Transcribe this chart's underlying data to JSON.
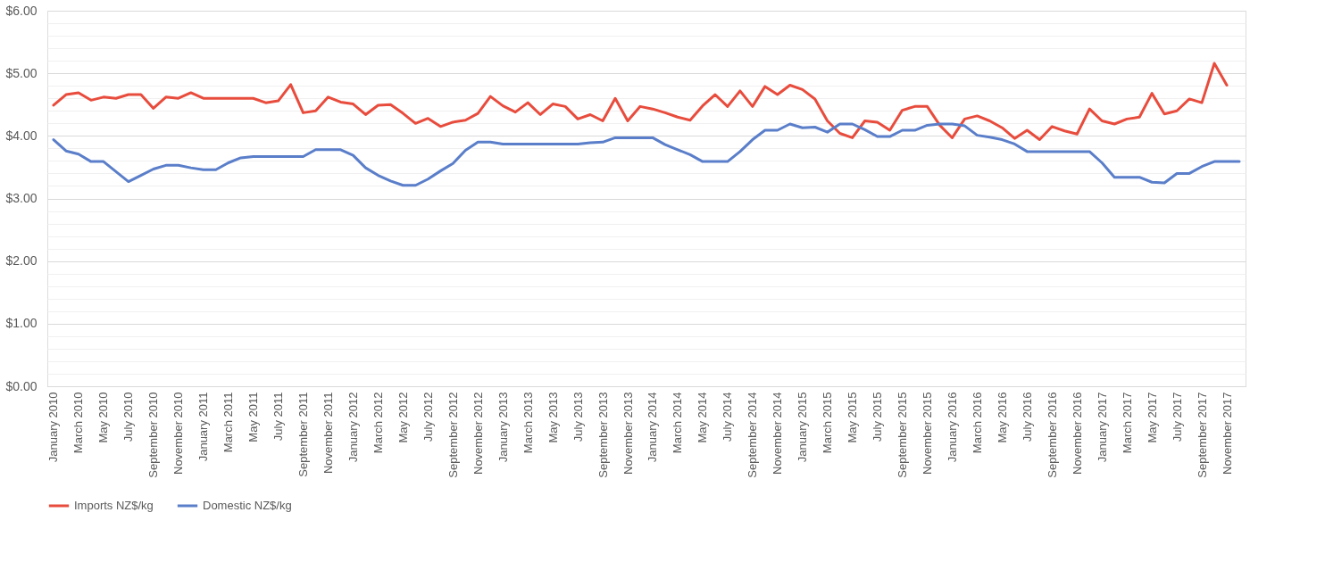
{
  "chart_data": {
    "type": "line",
    "categories": [
      "January 2010",
      null,
      "March 2010",
      null,
      "May 2010",
      null,
      "July 2010",
      null,
      "September 2010",
      null,
      "November 2010",
      null,
      "January 2011",
      null,
      "March 2011",
      null,
      "May 2011",
      null,
      "July 2011",
      null,
      "September 2011",
      null,
      "November 2011",
      null,
      "January 2012",
      null,
      "March 2012",
      null,
      "May 2012",
      null,
      "July 2012",
      null,
      "September 2012",
      null,
      "November 2012",
      null,
      "January 2013",
      null,
      "March 2013",
      null,
      "May 2013",
      null,
      "July 2013",
      null,
      "September 2013",
      null,
      "November 2013",
      null,
      "January 2014",
      null,
      "March 2014",
      null,
      "May 2014",
      null,
      "July 2014",
      null,
      "September 2014",
      null,
      "November 2014",
      null,
      "January 2015",
      null,
      "March 2015",
      null,
      "May 2015",
      null,
      "July 2015",
      null,
      "September 2015",
      null,
      "November 2015",
      null,
      "January 2016",
      null,
      "March 2016",
      null,
      "May 2016",
      null,
      "July 2016",
      null,
      "September 2016",
      null,
      "November 2016",
      null,
      "January 2017",
      null,
      "March 2017",
      null,
      "May 2017",
      null,
      "July 2017",
      null,
      "September 2017",
      null,
      "November 2017",
      null
    ],
    "series": [
      {
        "name": "Imports NZ$/kg",
        "color": "#e84c3d",
        "values": [
          4.49,
          4.66,
          4.69,
          4.57,
          4.62,
          4.6,
          4.66,
          4.66,
          4.44,
          4.62,
          4.6,
          4.69,
          4.6,
          4.6,
          4.6,
          4.6,
          4.6,
          4.53,
          4.56,
          4.82,
          4.37,
          4.4,
          4.62,
          4.54,
          4.51,
          4.34,
          4.49,
          4.5,
          4.36,
          4.2,
          4.28,
          4.15,
          4.22,
          4.25,
          4.36,
          4.63,
          4.48,
          4.38,
          4.53,
          4.34,
          4.51,
          4.47,
          4.27,
          4.34,
          4.24,
          4.6,
          4.24,
          4.47,
          4.43,
          4.37,
          4.3,
          4.25,
          4.48,
          4.66,
          4.47,
          4.72,
          4.47,
          4.79,
          4.66,
          4.81,
          4.74,
          4.59,
          4.24,
          4.04,
          3.97,
          4.24,
          4.22,
          4.09,
          4.41,
          4.47,
          4.47,
          4.17,
          3.97,
          4.27,
          4.32,
          4.24,
          4.13,
          3.96,
          4.09,
          3.94,
          4.15,
          4.08,
          4.03,
          4.43,
          4.24,
          4.19,
          4.27,
          4.3,
          4.68,
          4.35,
          4.4,
          4.59,
          4.53,
          5.16,
          4.81,
          null
        ]
      },
      {
        "name": "Domestic NZ$/kg",
        "color": "#5a7ec9",
        "values": [
          3.94,
          3.76,
          3.71,
          3.59,
          3.59,
          3.43,
          3.27,
          3.37,
          3.47,
          3.53,
          3.53,
          3.49,
          3.46,
          3.46,
          3.57,
          3.65,
          3.67,
          3.67,
          3.67,
          3.67,
          3.67,
          3.78,
          3.78,
          3.78,
          3.69,
          3.49,
          3.37,
          3.28,
          3.21,
          3.21,
          3.31,
          3.44,
          3.56,
          3.77,
          3.9,
          3.9,
          3.87,
          3.87,
          3.87,
          3.87,
          3.87,
          3.87,
          3.87,
          3.89,
          3.9,
          3.97,
          3.97,
          3.97,
          3.97,
          3.86,
          3.78,
          3.7,
          3.59,
          3.59,
          3.59,
          3.75,
          3.94,
          4.09,
          4.09,
          4.19,
          4.13,
          4.14,
          4.06,
          4.19,
          4.19,
          4.1,
          3.99,
          3.99,
          4.09,
          4.09,
          4.17,
          4.19,
          4.19,
          4.16,
          4.01,
          3.98,
          3.94,
          3.87,
          3.75,
          3.75,
          3.75,
          3.75,
          3.75,
          3.75,
          3.57,
          3.34,
          3.34,
          3.34,
          3.26,
          3.25,
          3.4,
          3.4,
          3.51,
          3.59,
          3.59,
          3.59
        ]
      }
    ],
    "ylim": [
      0,
      6
    ],
    "yticks": [
      {
        "value": 0,
        "label": "$0.00"
      },
      {
        "value": 0.2,
        "label": null
      },
      {
        "value": 0.4,
        "label": null
      },
      {
        "value": 0.6,
        "label": null
      },
      {
        "value": 0.8,
        "label": null
      },
      {
        "value": 1,
        "label": "$1.00"
      },
      {
        "value": 1.2,
        "label": null
      },
      {
        "value": 1.4,
        "label": null
      },
      {
        "value": 1.6,
        "label": null
      },
      {
        "value": 1.8,
        "label": null
      },
      {
        "value": 2,
        "label": "$2.00"
      },
      {
        "value": 2.2,
        "label": null
      },
      {
        "value": 2.4,
        "label": null
      },
      {
        "value": 2.6,
        "label": null
      },
      {
        "value": 2.8,
        "label": null
      },
      {
        "value": 3,
        "label": "$3.00"
      },
      {
        "value": 3.2,
        "label": null
      },
      {
        "value": 3.4,
        "label": null
      },
      {
        "value": 3.6,
        "label": null
      },
      {
        "value": 3.8,
        "label": null
      },
      {
        "value": 4,
        "label": "$4.00"
      },
      {
        "value": 4.2,
        "label": null
      },
      {
        "value": 4.4,
        "label": null
      },
      {
        "value": 4.6,
        "label": null
      },
      {
        "value": 4.8,
        "label": null
      },
      {
        "value": 5,
        "label": "$5.00"
      },
      {
        "value": 5.2,
        "label": null
      },
      {
        "value": 5.4,
        "label": null
      },
      {
        "value": 5.6,
        "label": null
      },
      {
        "value": 5.8,
        "label": null
      },
      {
        "value": 6,
        "label": "$6.00"
      }
    ],
    "grid": "y",
    "legend": "bottom",
    "marker": "none",
    "line_style": "solid"
  }
}
